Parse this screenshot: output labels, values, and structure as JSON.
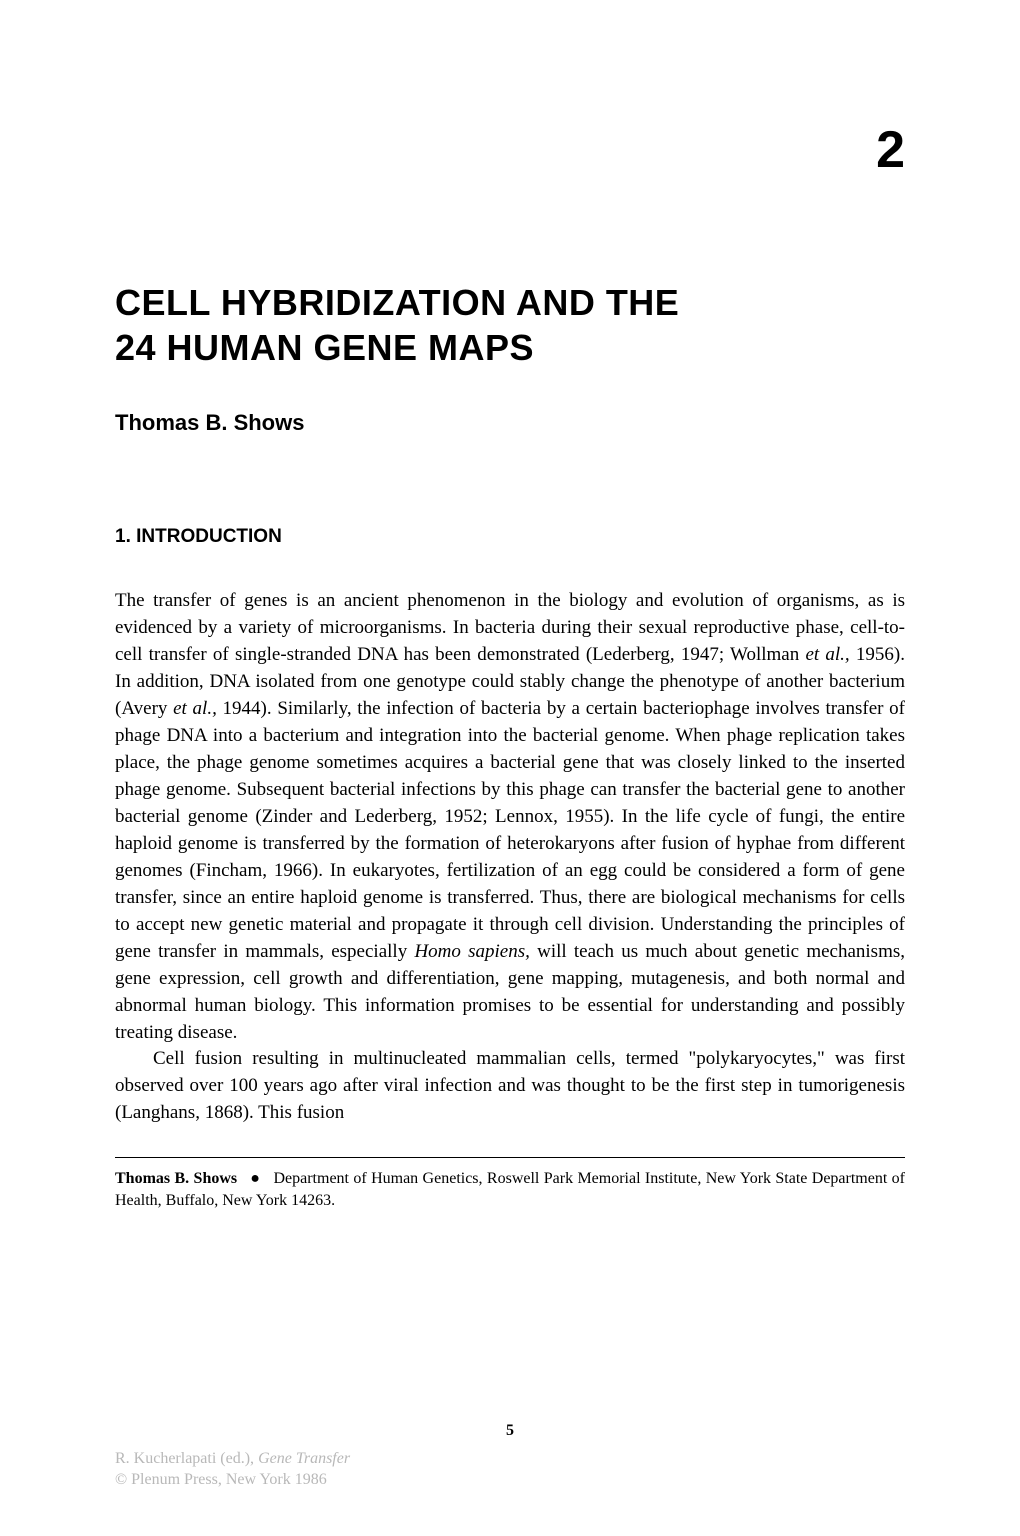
{
  "chapter_number": "2",
  "title_line1": "CELL HYBRIDIZATION AND THE",
  "title_line2": "24 HUMAN GENE MAPS",
  "author": "Thomas B. Shows",
  "section": {
    "number": "1.",
    "heading": "INTRODUCTION"
  },
  "para1_part1": "The transfer of genes is an ancient phenomenon in the biology and evolution of organisms, as is evidenced by a variety of microorganisms. In bacteria during their sexual reproductive phase, cell-to-cell transfer of single-stranded DNA has been demonstrated (Lederberg, 1947; Wollman ",
  "para1_italic1": "et al.,",
  "para1_part2": " 1956). In addition, DNA isolated from one genotype could stably change the phenotype of another bacterium (Avery ",
  "para1_italic2": "et al.,",
  "para1_part3": " 1944). Similarly, the infection of bacteria by a certain bacteriophage involves transfer of phage DNA into a bacterium and integration into the bacterial genome. When phage replication takes place, the phage genome sometimes acquires a bacterial gene that was closely linked to the inserted phage genome. Subsequent bacterial infections by this phage can transfer the bacterial gene to another bacterial genome (Zinder and Lederberg, 1952; Lennox, 1955). In the life cycle of fungi, the entire haploid genome is transferred by the formation of heterokaryons after fusion of hyphae from different genomes (Fincham, 1966). In eukaryotes, fertilization of an egg could be considered a form of gene transfer, since an entire haploid genome is transferred. Thus, there are biological mechanisms for cells to accept new genetic material and propagate it through cell division. Understanding the principles of gene transfer in mammals, especially ",
  "para1_italic3": "Homo sapiens,",
  "para1_part4": " will teach us much about genetic mechanisms, gene expression, cell growth and differentiation, gene mapping, mutagenesis, and both normal and abnormal human biology. This information promises to be essential for understanding and possibly treating disease.",
  "para2": "Cell fusion resulting in multinucleated mammalian cells, termed \"polykaryocytes,\" was first observed over 100 years ago after viral infection and was thought to be the first step in tumorigenesis (Langhans, 1868). This fusion",
  "footnote": {
    "author": "Thomas B. Shows",
    "bullet": "●",
    "affiliation": "Department of Human Genetics, Roswell Park Memorial Institute, New York State Department of Health, Buffalo, New York 14263."
  },
  "page_number": "5",
  "citation": {
    "line1_part1": "R. Kucherlapati (ed.), ",
    "line1_italic": "Gene Transfer",
    "line2": "© Plenum Press, New York 1986"
  },
  "styles": {
    "body_font_size": 19,
    "title_font_size": 36,
    "author_font_size": 22,
    "chapter_num_font_size": 52,
    "footnote_font_size": 16,
    "text_color": "#000000",
    "background_color": "#ffffff",
    "citation_color": "#b8b8b8"
  }
}
